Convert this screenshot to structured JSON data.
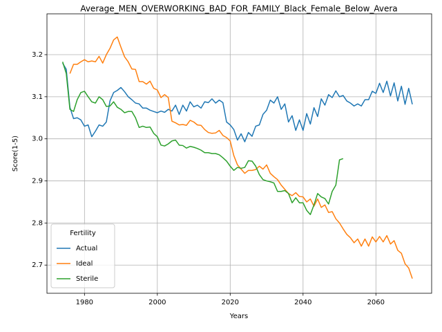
{
  "chart_data": {
    "type": "line",
    "title": "Average_MEN_OVERWORKING_BAD_FOR_FAMILY_Black_Female_Below_Avera",
    "x_label": "Years",
    "y_label": "Score(1-5)",
    "x": [
      1974,
      1975,
      1976,
      1977,
      1978,
      1979,
      1980,
      1981,
      1982,
      1983,
      1984,
      1985,
      1986,
      1987,
      1988,
      1989,
      1990,
      1991,
      1992,
      1993,
      1994,
      1995,
      1996,
      1997,
      1998,
      1999,
      2000,
      2001,
      2002,
      2003,
      2004,
      2005,
      2006,
      2007,
      2008,
      2009,
      2010,
      2011,
      2012,
      2013,
      2014,
      2015,
      2016,
      2017,
      2018,
      2019,
      2020,
      2021,
      2022,
      2023,
      2024,
      2025,
      2026,
      2027,
      2028,
      2029,
      2030,
      2031,
      2032,
      2033,
      2034,
      2035,
      2036,
      2037,
      2038,
      2039,
      2040,
      2041,
      2042,
      2043,
      2044,
      2045,
      2046,
      2047,
      2048,
      2049,
      2050,
      2051,
      2052,
      2053,
      2054,
      2055,
      2056,
      2057,
      2058,
      2059,
      2060,
      2061,
      2062,
      2063,
      2064,
      2065,
      2066,
      2067,
      2068,
      2069,
      2070
    ],
    "series": [
      {
        "name": "Actual",
        "color": "#1f77b4",
        "values": [
          3.18,
          3.165,
          3.075,
          3.048,
          3.05,
          3.045,
          3.03,
          3.033,
          3.005,
          3.018,
          3.033,
          3.03,
          3.04,
          3.09,
          3.11,
          3.115,
          3.122,
          3.112,
          3.1,
          3.093,
          3.085,
          3.083,
          3.073,
          3.073,
          3.068,
          3.065,
          3.062,
          3.066,
          3.063,
          3.07,
          3.066,
          3.08,
          3.058,
          3.08,
          3.066,
          3.088,
          3.076,
          3.08,
          3.073,
          3.088,
          3.086,
          3.095,
          3.085,
          3.092,
          3.086,
          3.04,
          3.033,
          3.022,
          2.997,
          3.012,
          2.993,
          3.015,
          3.006,
          3.03,
          3.033,
          3.058,
          3.068,
          3.092,
          3.085,
          3.1,
          3.07,
          3.083,
          3.04,
          3.055,
          3.02,
          3.045,
          3.02,
          3.06,
          3.035,
          3.074,
          3.053,
          3.095,
          3.08,
          3.105,
          3.098,
          3.114,
          3.1,
          3.103,
          3.09,
          3.085,
          3.078,
          3.083,
          3.078,
          3.093,
          3.093,
          3.113,
          3.108,
          3.132,
          3.11,
          3.137,
          3.102,
          3.133,
          3.09,
          3.125,
          3.082,
          3.12,
          3.082
        ]
      },
      {
        "name": "Ideal",
        "color": "#ff7f0e",
        "values": [
          null,
          null,
          3.155,
          3.177,
          3.177,
          3.183,
          3.188,
          3.183,
          3.185,
          3.183,
          3.196,
          3.18,
          3.2,
          3.215,
          3.235,
          3.242,
          3.218,
          3.195,
          3.183,
          3.166,
          3.165,
          3.136,
          3.136,
          3.13,
          3.137,
          3.12,
          3.116,
          3.098,
          3.105,
          3.098,
          3.042,
          3.038,
          3.033,
          3.034,
          3.032,
          3.044,
          3.04,
          3.033,
          3.032,
          3.022,
          3.015,
          3.013,
          3.014,
          3.02,
          3.008,
          3.003,
          2.995,
          2.96,
          2.938,
          2.928,
          2.918,
          2.925,
          2.925,
          2.927,
          2.935,
          2.928,
          2.938,
          2.918,
          2.91,
          2.903,
          2.89,
          2.88,
          2.87,
          2.865,
          2.872,
          2.863,
          2.862,
          2.85,
          2.857,
          2.84,
          2.857,
          2.837,
          2.843,
          2.825,
          2.827,
          2.81,
          2.8,
          2.786,
          2.773,
          2.765,
          2.753,
          2.762,
          2.745,
          2.762,
          2.745,
          2.767,
          2.755,
          2.768,
          2.755,
          2.77,
          2.75,
          2.758,
          2.735,
          2.728,
          2.703,
          2.693,
          2.668
        ]
      },
      {
        "name": "Sterile",
        "color": "#2ca02c",
        "values": [
          3.183,
          3.155,
          3.07,
          3.065,
          3.093,
          3.11,
          3.113,
          3.1,
          3.088,
          3.085,
          3.1,
          3.093,
          3.077,
          3.078,
          3.088,
          3.075,
          3.07,
          3.062,
          3.065,
          3.065,
          3.05,
          3.027,
          3.03,
          3.027,
          3.028,
          3.013,
          3.005,
          2.985,
          2.983,
          2.988,
          2.995,
          2.997,
          2.985,
          2.984,
          2.978,
          2.982,
          2.98,
          2.977,
          2.973,
          2.967,
          2.967,
          2.965,
          2.965,
          2.962,
          2.955,
          2.947,
          2.935,
          2.925,
          2.932,
          2.93,
          2.932,
          2.948,
          2.947,
          2.935,
          2.915,
          2.903,
          2.9,
          2.898,
          2.895,
          2.875,
          2.875,
          2.877,
          2.87,
          2.848,
          2.86,
          2.848,
          2.848,
          2.83,
          2.82,
          2.843,
          2.87,
          2.862,
          2.858,
          2.845,
          2.875,
          2.89,
          2.95,
          2.953,
          null,
          null,
          null,
          null,
          null,
          null,
          null,
          null,
          null,
          null,
          null,
          null,
          null,
          null,
          null,
          null,
          null,
          null,
          null
        ]
      }
    ],
    "xlim": [
      1969.7,
      2075.3
    ],
    "ylim": [
      2.633,
      3.297
    ],
    "xticks": [
      1980,
      2000,
      2020,
      2040,
      2060
    ],
    "yticks": [
      2.7,
      2.8,
      2.9,
      {
        "value": 3,
        "label": "3.0"
      },
      3.1,
      3.2
    ],
    "grid": true,
    "legend_title": "Fertility",
    "legend_position": "lower left"
  }
}
